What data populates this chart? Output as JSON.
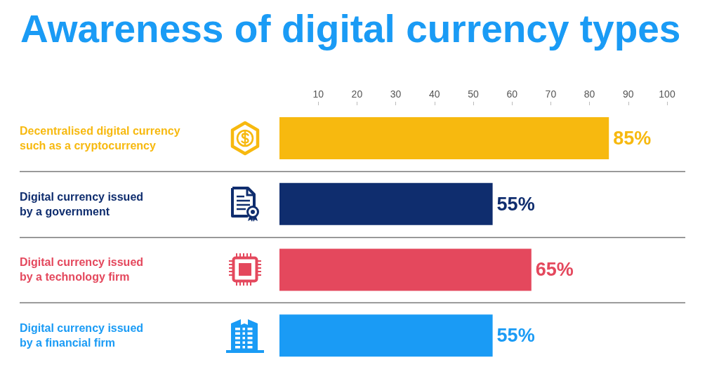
{
  "chart_data": {
    "type": "bar",
    "orientation": "horizontal",
    "title": "Awareness of digital currency types",
    "categories": [
      "Decentralised digital currency\nsuch as a cryptocurrency",
      "Digital currency issued\nby a government",
      "Digital currency issued\nby a technology firm",
      "Digital currency issued\nby a financial firm"
    ],
    "series": [
      {
        "axis": "x2",
        "values": [
          85,
          55,
          65,
          55
        ],
        "colors": [
          "#f7b90f",
          "#0f2d6e",
          "#e4485d",
          "#1a9bf5"
        ],
        "value_labels": [
          "85%",
          "55%",
          "65%",
          "55%"
        ]
      }
    ],
    "x2lim": [
      0,
      100
    ],
    "x2ticks": [
      10,
      20,
      30,
      40,
      50,
      60,
      70,
      80,
      90,
      100
    ],
    "grid": "y"
  }
}
